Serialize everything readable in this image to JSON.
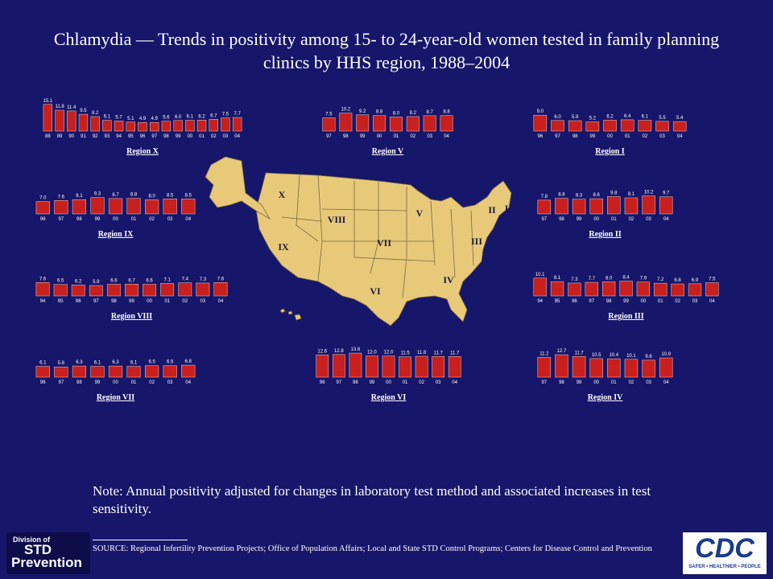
{
  "title": "Chlamydia — Trends in positivity among 15- to 24-year-old women tested in family planning clinics by HHS region, 1988–2004",
  "chart_data": [
    {
      "type": "bar",
      "title": "Region X",
      "color": "#c8201e",
      "categories": [
        "88",
        "89",
        "90",
        "91",
        "92",
        "93",
        "94",
        "95",
        "96",
        "97",
        "98",
        "99",
        "00",
        "01",
        "02",
        "03",
        "04"
      ],
      "values": [
        15.1,
        11.8,
        11.4,
        9.5,
        8.2,
        6.1,
        5.7,
        5.1,
        4.9,
        4.9,
        5.6,
        6.0,
        6.1,
        6.2,
        6.7,
        7.5,
        7.7
      ],
      "value_labels": [
        "15.1",
        "11.8",
        "11.4",
        "9.5",
        "8.2",
        "6.1",
        "5.7",
        "5.1",
        "4.9",
        "4.9",
        "5.6",
        "6.0",
        "6.1",
        "6.2",
        "6.7",
        "7.5",
        "7.7"
      ]
    },
    {
      "type": "bar",
      "title": "Region V",
      "color": "#c8201e",
      "categories": [
        "97",
        "98",
        "99",
        "00",
        "01",
        "02",
        "03",
        "04"
      ],
      "values": [
        7.5,
        10.2,
        9.2,
        8.8,
        8.0,
        8.2,
        8.7,
        8.8
      ],
      "value_labels": [
        "7.5",
        "10.2",
        "9.2",
        "8.8",
        "8.0",
        "8.2",
        "8.7",
        "8.8"
      ]
    },
    {
      "type": "bar",
      "title": "Region I",
      "color": "#c8201e",
      "categories": [
        "96",
        "97",
        "98",
        "99",
        "00",
        "01",
        "02",
        "03",
        "04"
      ],
      "values": [
        9.0,
        6.0,
        5.9,
        5.2,
        6.2,
        6.4,
        6.1,
        5.5,
        5.4
      ],
      "value_labels": [
        "9.0",
        "6.0",
        "5.9",
        "5.2",
        "6.2",
        "6.4",
        "6.1",
        "5.5",
        "5.4"
      ]
    },
    {
      "type": "bar",
      "title": "Region IX",
      "color": "#c8201e",
      "categories": [
        "96",
        "97",
        "98",
        "99",
        "00",
        "01",
        "02",
        "03",
        "04"
      ],
      "values": [
        7.0,
        7.6,
        8.1,
        9.3,
        8.7,
        8.8,
        8.0,
        8.5,
        8.5
      ],
      "value_labels": [
        "7.0",
        "7.6",
        "8.1",
        "9.3",
        "8.7",
        "8.8",
        "8.0",
        "8.5",
        "8.5"
      ]
    },
    {
      "type": "bar",
      "title": "Region II",
      "color": "#c8201e",
      "categories": [
        "97",
        "98",
        "99",
        "00",
        "01",
        "02",
        "03",
        "04"
      ],
      "values": [
        7.8,
        8.8,
        8.3,
        8.6,
        9.8,
        9.1,
        10.2,
        9.7
      ],
      "value_labels": [
        "7.8",
        "8.8",
        "8.3",
        "8.6",
        "9.8",
        "9.1",
        "10.2",
        "9.7"
      ]
    },
    {
      "type": "bar",
      "title": "Region VIII",
      "color": "#c8201e",
      "categories": [
        "94",
        "95",
        "96",
        "97",
        "98",
        "99",
        "00",
        "01",
        "02",
        "03",
        "04"
      ],
      "values": [
        7.6,
        6.5,
        6.2,
        5.9,
        6.6,
        6.7,
        6.6,
        7.1,
        7.4,
        7.3,
        7.6
      ],
      "value_labels": [
        "7.6",
        "6.5",
        "6.2",
        "5.9",
        "6.6",
        "6.7",
        "6.6",
        "7.1",
        "7.4",
        "7.3",
        "7.6"
      ]
    },
    {
      "type": "bar",
      "title": "Region III",
      "color": "#c8201e",
      "categories": [
        "94",
        "95",
        "96",
        "97",
        "98",
        "99",
        "00",
        "01",
        "02",
        "03",
        "04"
      ],
      "values": [
        10.1,
        8.1,
        7.3,
        7.7,
        8.0,
        8.4,
        7.9,
        7.2,
        6.8,
        6.9,
        7.5
      ],
      "value_labels": [
        "10.1",
        "8.1",
        "7.3",
        "7.7",
        "8.0",
        "8.4",
        "7.9",
        "7.2",
        "6.8",
        "6.9",
        "7.5"
      ]
    },
    {
      "type": "bar",
      "title": "Region VII",
      "color": "#c8201e",
      "categories": [
        "96",
        "97",
        "98",
        "99",
        "00",
        "01",
        "02",
        "03",
        "04"
      ],
      "values": [
        6.1,
        5.8,
        6.3,
        6.1,
        6.3,
        6.1,
        6.5,
        6.5,
        6.8
      ],
      "value_labels": [
        "6.1",
        "5.8",
        "6.3",
        "6.1",
        "6.3",
        "6.1",
        "6.5",
        "6.5",
        "6.8"
      ]
    },
    {
      "type": "bar",
      "title": "Region VI",
      "color": "#c8201e",
      "categories": [
        "96",
        "97",
        "98",
        "99",
        "00",
        "01",
        "02",
        "03",
        "04"
      ],
      "values": [
        12.6,
        12.8,
        13.6,
        12.0,
        12.0,
        11.5,
        11.8,
        11.7,
        11.7
      ],
      "value_labels": [
        "12.6",
        "12.8",
        "13.6",
        "12.0",
        "12.0",
        "11.5",
        "11.8",
        "11.7",
        "11.7"
      ]
    },
    {
      "type": "bar",
      "title": "Region IV",
      "color": "#c8201e",
      "categories": [
        "97",
        "98",
        "99",
        "00",
        "01",
        "02",
        "03",
        "04"
      ],
      "values": [
        11.2,
        12.7,
        11.7,
        10.5,
        10.4,
        10.1,
        9.6,
        10.9
      ],
      "value_labels": [
        "11.2",
        "12.7",
        "11.7",
        "10.5",
        "10.4",
        "10.1",
        "9.6",
        "10.9"
      ]
    }
  ],
  "map_labels": [
    "X",
    "VIII",
    "IX",
    "VII",
    "VI",
    "V",
    "IV",
    "III",
    "II",
    "I"
  ],
  "note": "Note: Annual positivity adjusted for changes in laboratory test method and associated increases in test sensitivity.",
  "source": "SOURCE: Regional Infertility Prevention Projects; Office of Population Affairs; Local and State STD Control Programs; Centers for Disease Control and Prevention",
  "logo_left": {
    "line1": "Division of",
    "line2": "STD",
    "line3": "Prevention"
  },
  "logo_right": {
    "name": "CDC",
    "tagline": "SAFER • HEALTHIER • PEOPLE"
  }
}
